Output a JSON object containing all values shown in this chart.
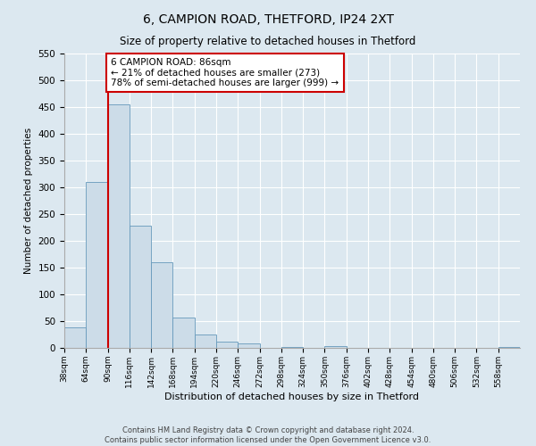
{
  "title1": "6, CAMPION ROAD, THETFORD, IP24 2XT",
  "title2": "Size of property relative to detached houses in Thetford",
  "xlabel": "Distribution of detached houses by size in Thetford",
  "ylabel": "Number of detached properties",
  "bin_labels": [
    "38sqm",
    "64sqm",
    "90sqm",
    "116sqm",
    "142sqm",
    "168sqm",
    "194sqm",
    "220sqm",
    "246sqm",
    "272sqm",
    "298sqm",
    "324sqm",
    "350sqm",
    "376sqm",
    "402sqm",
    "428sqm",
    "454sqm",
    "480sqm",
    "506sqm",
    "532sqm",
    "558sqm"
  ],
  "bar_values": [
    38,
    310,
    455,
    228,
    160,
    57,
    25,
    12,
    9,
    0,
    1,
    0,
    4,
    0,
    0,
    0,
    0,
    0,
    0,
    0,
    2
  ],
  "bar_color": "#ccdce8",
  "bar_edge_color": "#6699bb",
  "vline_x": 2,
  "vline_color": "#cc0000",
  "annotation_title": "6 CAMPION ROAD: 86sqm",
  "annotation_line1": "← 21% of detached houses are smaller (273)",
  "annotation_line2": "78% of semi-detached houses are larger (999) →",
  "annotation_box_color": "#ffffff",
  "annotation_box_edge": "#cc0000",
  "ylim": [
    0,
    550
  ],
  "yticks": [
    0,
    50,
    100,
    150,
    200,
    250,
    300,
    350,
    400,
    450,
    500,
    550
  ],
  "footer1": "Contains HM Land Registry data © Crown copyright and database right 2024.",
  "footer2": "Contains public sector information licensed under the Open Government Licence v3.0.",
  "bg_color": "#dce8f0",
  "plot_bg_color": "#dce8f0"
}
